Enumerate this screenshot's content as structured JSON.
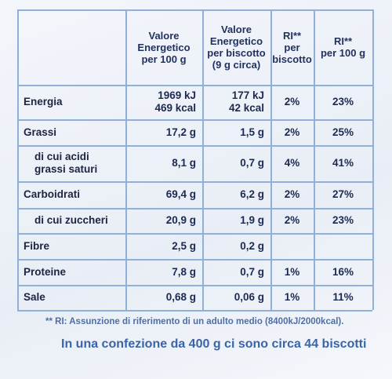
{
  "table": {
    "header": [
      [
        "Valore",
        "Energetico",
        "per 100 g"
      ],
      [
        "Valore",
        "Energetico",
        "per biscotto",
        "(9 g circa)"
      ],
      [
        "RI**",
        "per",
        "biscotto"
      ],
      [
        "RI**",
        "per 100 g"
      ]
    ],
    "rows": [
      {
        "label": [
          "Energia"
        ],
        "cells": [
          [
            "1969 kJ",
            "469 kcal"
          ],
          [
            "177 kJ",
            "42 kcal"
          ],
          [
            "2%"
          ],
          [
            "23%"
          ]
        ]
      },
      {
        "label": [
          "Grassi"
        ],
        "cells": [
          [
            "17,2 g"
          ],
          [
            "1,5 g"
          ],
          [
            "2%"
          ],
          [
            "25%"
          ]
        ]
      },
      {
        "label": [
          "di cui acidi",
          "grassi saturi"
        ],
        "cells": [
          [
            "8,1 g"
          ],
          [
            "0,7 g"
          ],
          [
            "4%"
          ],
          [
            "41%"
          ]
        ]
      },
      {
        "label": [
          "Carboidrati"
        ],
        "cells": [
          [
            "69,4 g"
          ],
          [
            "6,2 g"
          ],
          [
            "2%"
          ],
          [
            "27%"
          ]
        ]
      },
      {
        "label": [
          "di cui zuccheri"
        ],
        "cells": [
          [
            "20,9 g"
          ],
          [
            "1,9 g"
          ],
          [
            "2%"
          ],
          [
            "23%"
          ]
        ]
      },
      {
        "label": [
          "Fibre"
        ],
        "cells": [
          [
            "2,5 g"
          ],
          [
            "0,2 g"
          ]
        ]
      },
      {
        "label": [
          "Proteine"
        ],
        "cells": [
          [
            "7,8 g"
          ],
          [
            "0,7 g"
          ],
          [
            "1%"
          ],
          [
            "16%"
          ]
        ]
      },
      {
        "label": [
          "Sale"
        ],
        "cells": [
          [
            "0,68 g"
          ],
          [
            "0,06 g"
          ],
          [
            "1%"
          ],
          [
            "11%"
          ]
        ]
      }
    ]
  },
  "footnote": "** RI: Assunzione di riferimento di un adulto medio (8400kJ/2000kcal).",
  "serving_note": "In una confezione da 400 g ci sono circa 44 biscotti"
}
